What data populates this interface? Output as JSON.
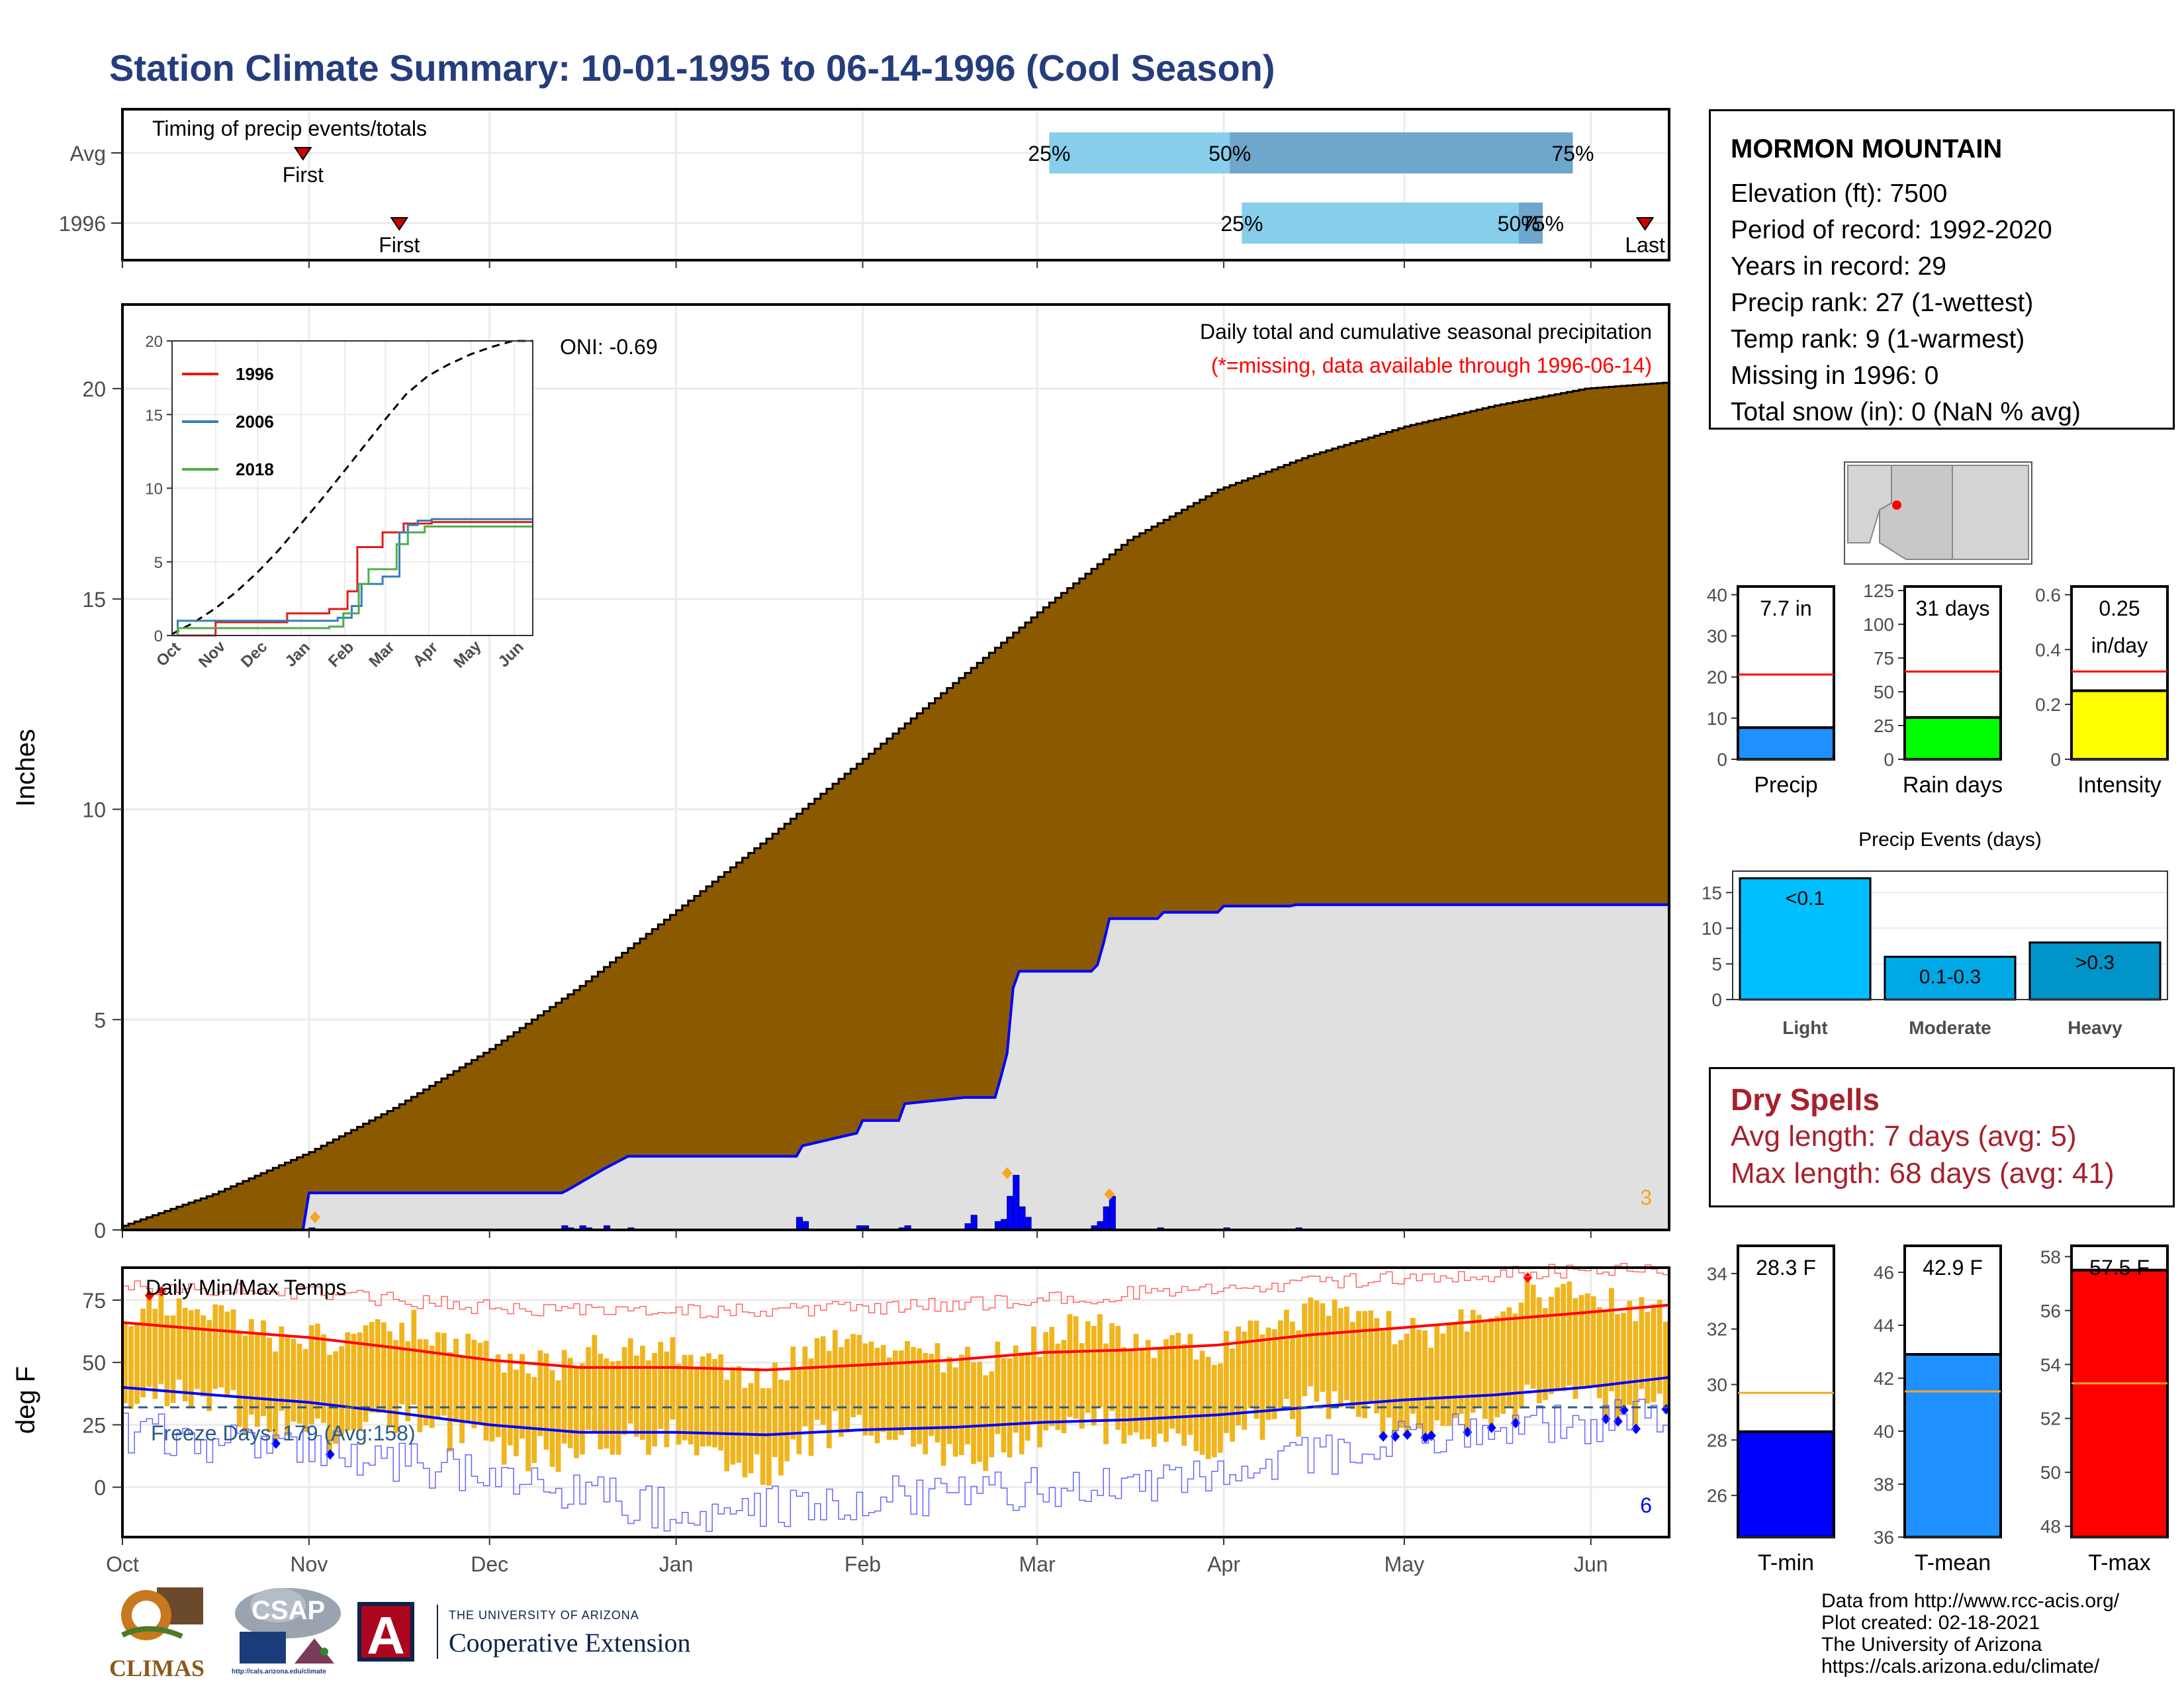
{
  "title": "Station Climate Summary: 10-01-1995 to 06-14-1996 (Cool Season)",
  "colors": {
    "title": "#253d7d",
    "cum_avg": "#8b5a00",
    "cum_cur": "#e0e0e0",
    "cur_line": "#0000ff",
    "q1": "#87ceeb",
    "q2": "#6ea6cc",
    "tmax_bar": "#f0b41c",
    "dry": "#a8202c"
  },
  "month_labels": [
    "Oct",
    "Nov",
    "Dec",
    "Jan",
    "Feb",
    "Mar",
    "Apr",
    "May",
    "Jun"
  ],
  "timing": {
    "label": "Timing of precip events/totals",
    "rows": [
      "Avg",
      "1996"
    ],
    "first_label": "First",
    "last_label": "Last",
    "q_labels": [
      "25%",
      "50%",
      "75%"
    ],
    "avg": {
      "first": 30,
      "q25": 154,
      "q50": 184,
      "q75": 241,
      "last": 373
    },
    "cur": {
      "first": 46,
      "q25": 186,
      "q50": 232,
      "q75": 236,
      "last": 253
    }
  },
  "chart_data": [
    {
      "type": "area",
      "name": "daily_cumulative_precip",
      "title": "Daily total and cumulative seasonal precipitation",
      "subtitle": "(*=missing, data available through 1996-06-14)",
      "oni_text": "ONI: -0.69",
      "ylabel": "Inches",
      "ylim": [
        0,
        22
      ],
      "yticks": [
        0,
        5,
        10,
        15,
        20
      ],
      "xlim": [
        0,
        257
      ],
      "corner_label": "3",
      "avg_cumulative": {
        "x": [
          0,
          15,
          31,
          45,
          61,
          76,
          92,
          107,
          123,
          138,
          153,
          167,
          182,
          197,
          213,
          228,
          243,
          257
        ],
        "y": [
          0.1,
          0.85,
          1.85,
          2.9,
          4.3,
          5.8,
          7.6,
          9.3,
          11.2,
          13.0,
          14.8,
          16.4,
          17.6,
          18.4,
          19.1,
          19.6,
          20.0,
          20.15
        ]
      },
      "cur_cumulative": {
        "x": [
          0,
          30,
          31,
          45,
          73,
          74,
          80,
          84,
          112,
          113,
          122,
          123,
          129,
          130,
          140,
          145,
          146,
          147,
          148,
          149,
          150,
          161,
          162,
          163,
          164,
          172,
          173,
          182,
          183,
          194,
          195,
          205,
          257
        ],
        "y": [
          0,
          0,
          0.88,
          0.88,
          0.88,
          0.95,
          1.45,
          1.75,
          1.75,
          2.0,
          2.3,
          2.6,
          2.6,
          3.0,
          3.15,
          3.15,
          3.65,
          4.2,
          5.75,
          6.15,
          6.15,
          6.15,
          6.3,
          6.8,
          7.4,
          7.4,
          7.55,
          7.55,
          7.7,
          7.7,
          7.73,
          7.73,
          7.73
        ]
      },
      "daily_bars": {
        "x": [
          31,
          73,
          74,
          76,
          77,
          80,
          84,
          112,
          113,
          122,
          123,
          129,
          130,
          140,
          141,
          145,
          146,
          147,
          148,
          149,
          150,
          161,
          162,
          163,
          164,
          172,
          183,
          195
        ],
        "y": [
          0.05,
          0.1,
          0.05,
          0.1,
          0.05,
          0.1,
          0.05,
          0.3,
          0.2,
          0.1,
          0.1,
          0.05,
          0.1,
          0.15,
          0.35,
          0.2,
          0.25,
          0.8,
          1.3,
          0.55,
          0.3,
          0.1,
          0.2,
          0.55,
          0.8,
          0.05,
          0.05,
          0.05
        ]
      },
      "flag_points": {
        "x": [
          32,
          147,
          164
        ],
        "y": [
          0.3,
          1.35,
          0.85
        ]
      },
      "inset": {
        "type": "line",
        "xlim": [
          0,
          257
        ],
        "ylim": [
          0,
          20
        ],
        "yticks": [
          0,
          5,
          10,
          15,
          20
        ],
        "legend": [
          "1996",
          "2006",
          "2018"
        ],
        "series": [
          {
            "name": "1996",
            "color": "#e41a1c",
            "x": [
              0,
              30,
              31,
              75,
              82,
              112,
              125,
              132,
              150,
              165,
              185,
              257
            ],
            "y": [
              0,
              0,
              0.9,
              0.9,
              1.5,
              1.8,
              3.0,
              6.0,
              7.0,
              7.6,
              7.7,
              7.7
            ]
          },
          {
            "name": "2006",
            "color": "#377eb8",
            "x": [
              0,
              3,
              4,
              92,
              118,
              128,
              135,
              150,
              162,
              168,
              175,
              185,
              257
            ],
            "y": [
              0,
              0,
              1.0,
              1.0,
              1.2,
              2.0,
              3.5,
              4.0,
              7.0,
              7.5,
              7.8,
              7.9,
              7.9
            ]
          },
          {
            "name": "2018",
            "color": "#4daf4a",
            "x": [
              0,
              3,
              4,
              78,
              90,
              112,
              122,
              133,
              140,
              160,
              168,
              180,
              257
            ],
            "y": [
              0,
              0,
              0.5,
              0.5,
              0.5,
              0.6,
              1.5,
              3.5,
              4.5,
              6.2,
              7.0,
              7.4,
              7.4
            ]
          }
        ],
        "avg_dashed": {
          "x": [
            0,
            15,
            31,
            45,
            61,
            76,
            92,
            107,
            123,
            138,
            153,
            167,
            182,
            197,
            213,
            228,
            243,
            257
          ],
          "y": [
            0.1,
            0.85,
            1.85,
            2.9,
            4.3,
            5.8,
            7.6,
            9.3,
            11.2,
            13.0,
            14.8,
            16.4,
            17.6,
            18.4,
            19.1,
            19.6,
            20.0,
            20.15
          ]
        }
      }
    },
    {
      "type": "bar",
      "name": "daily_temps",
      "title": "Daily Min/Max Temps",
      "ylabel": "deg F",
      "ylim": [
        -20,
        88
      ],
      "yticks": [
        0,
        25,
        50,
        75
      ],
      "freeze_text": "Freeze Days: 179 (Avg:158)",
      "freeze_line": 32,
      "corner_label": "6",
      "avg_max": {
        "x": [
          0,
          15,
          31,
          45,
          61,
          76,
          92,
          107,
          123,
          138,
          153,
          167,
          182,
          197,
          213,
          228,
          243,
          257
        ],
        "y": [
          66,
          63,
          60,
          56,
          51,
          48,
          48,
          47,
          49,
          51,
          54,
          55,
          57,
          61,
          64,
          67,
          70,
          73
        ]
      },
      "avg_min": {
        "x": [
          0,
          15,
          31,
          45,
          61,
          76,
          92,
          107,
          123,
          138,
          153,
          167,
          182,
          197,
          213,
          228,
          243,
          257
        ],
        "y": [
          40,
          37,
          34,
          30,
          25,
          22,
          22,
          21,
          23,
          24,
          26,
          27,
          29,
          32,
          35,
          37,
          40,
          44
        ]
      },
      "record_max": {
        "x": [
          0,
          31,
          61,
          92,
          123,
          153,
          182,
          213,
          243,
          257
        ],
        "y": [
          80,
          78,
          72,
          70,
          72,
          75,
          80,
          84,
          87,
          88
        ]
      },
      "record_min": {
        "x": [
          0,
          31,
          61,
          92,
          123,
          153,
          182,
          213,
          243,
          257
        ],
        "y": [
          22,
          15,
          5,
          -10,
          -5,
          0,
          5,
          20,
          25,
          32
        ]
      }
    },
    {
      "type": "bar",
      "name": "season_totals",
      "panels": [
        {
          "category": "Precip",
          "label": "7.7 in",
          "value": 7.7,
          "avg": 20.6,
          "ylim": [
            0,
            42
          ],
          "yticks": [
            0,
            10,
            20,
            30,
            40
          ],
          "color": "#1e90ff"
        },
        {
          "category": "Rain days",
          "label": "31 days",
          "value": 31,
          "avg": 65,
          "ylim": [
            0,
            128
          ],
          "yticks": [
            0,
            25,
            50,
            75,
            100,
            125
          ],
          "color": "#00ff00"
        },
        {
          "category": "Intensity",
          "label": "0.25 in/day",
          "value": 0.25,
          "avg": 0.32,
          "ylim": [
            0,
            0.63
          ],
          "yticks": [
            0.0,
            0.2,
            0.4,
            0.6
          ],
          "color": "#ffff00"
        }
      ]
    },
    {
      "type": "bar",
      "name": "precip_events",
      "title": "Precip Events (days)",
      "categories": [
        "Light",
        "Moderate",
        "Heavy"
      ],
      "bar_labels": [
        "<0.1",
        "0.1-0.3",
        ">0.3"
      ],
      "values": [
        17,
        6,
        8
      ],
      "ylim": [
        0,
        18
      ],
      "yticks": [
        0,
        5,
        10,
        15
      ],
      "colors": [
        "#00bfff",
        "#00a9e6",
        "#0094c9"
      ]
    },
    {
      "type": "bar",
      "name": "season_temps",
      "panels": [
        {
          "category": "T-min",
          "label": "28.3 F",
          "value": 28.3,
          "avg": 29.7,
          "ylim": [
            24.5,
            35
          ],
          "yticks": [
            26,
            28,
            30,
            32,
            34
          ],
          "color": "#0000ff"
        },
        {
          "category": "T-mean",
          "label": "42.9 F",
          "value": 42.9,
          "avg": 41.5,
          "ylim": [
            36,
            47
          ],
          "yticks": [
            36,
            38,
            40,
            42,
            44,
            46
          ],
          "color": "#1e90ff"
        },
        {
          "category": "T-max",
          "label": "57.5 F",
          "value": 57.5,
          "avg": 53.3,
          "ylim": [
            47.6,
            58.4
          ],
          "yticks": [
            48,
            50,
            52,
            54,
            56,
            58
          ],
          "color": "#ff0000"
        }
      ]
    }
  ],
  "station": {
    "name": "MORMON MOUNTAIN",
    "elevation": "Elevation (ft): 7500",
    "period": "Period of record: 1992-2020",
    "years": "Years in record: 29",
    "precip_rank": "Precip rank: 27 (1-wettest)",
    "temp_rank": "Temp rank: 9 (1-warmest)",
    "missing": "Missing in 1996: 0",
    "snow": "Total snow (in): 0 (NaN % avg)"
  },
  "dry_spells": {
    "title": "Dry Spells",
    "avg_length": "Avg length: 7 days (avg: 5)",
    "max_length": "Max length: 68 days (avg: 41)"
  },
  "footer": [
    "Data from http://www.rcc-acis.org/",
    "Plot created: 02-18-2021",
    "The University of Arizona",
    "https://cals.arizona.edu/climate/"
  ],
  "logos": {
    "climas": "CLIMAS",
    "csap": "CSAP",
    "csap_url": "http://cals.arizona.edu/climate",
    "ua_top": "THE UNIVERSITY OF ARIZONA",
    "ua_bottom": "Cooperative Extension",
    "ua_mark": "A"
  }
}
